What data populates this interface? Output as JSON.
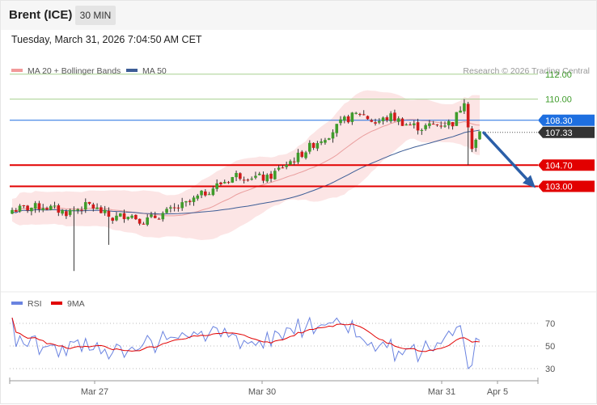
{
  "header": {
    "instrument": "Brent (ICE)",
    "timeframe": "30 MIN",
    "datetime": "Tuesday, March 31, 2026 7:04:50 AM CET"
  },
  "legend": {
    "ma20": "MA 20 + Bollinger Bands",
    "ma50": "MA 50",
    "credit": "Research © 2026 Trading Central"
  },
  "rsi_legend": {
    "rsi": "RSI",
    "ma9": "9MA"
  },
  "colors": {
    "up": "#3f9c2b",
    "down": "#d11a1a",
    "band": "#fbdcdc",
    "ma20": "#e58c8c",
    "ma50": "#3d5d96",
    "current": "#1e6fe0",
    "support": "#e20000",
    "resistance": "#a7d08f",
    "arrow": "#2b5fa8",
    "rsi": "#6a83e0",
    "rsi_ma": "#e20000"
  },
  "chart_data": [
    {
      "type": "candlestick",
      "ylim": [
        95.5,
        114
      ],
      "levels": [
        {
          "value": 112.0,
          "label": "112.00",
          "kind": "resistance"
        },
        {
          "value": 110.0,
          "label": "110.00",
          "kind": "resistance"
        },
        {
          "value": 108.3,
          "label": "108.30",
          "kind": "current"
        },
        {
          "value": 107.33,
          "label": "107.33",
          "kind": "last"
        },
        {
          "value": 104.7,
          "label": "104.70",
          "kind": "support"
        },
        {
          "value": 103.0,
          "label": "103.00",
          "kind": "support"
        }
      ],
      "x_ticks": [
        "Mar 27",
        "Mar 30",
        "Mar 31",
        "Apr 5"
      ],
      "forecast_arrow": {
        "from": 107.3,
        "to": 103.0
      }
    },
    {
      "type": "line",
      "ylim": [
        25,
        80
      ],
      "y_ticks": [
        "70",
        "50",
        "30"
      ]
    }
  ]
}
